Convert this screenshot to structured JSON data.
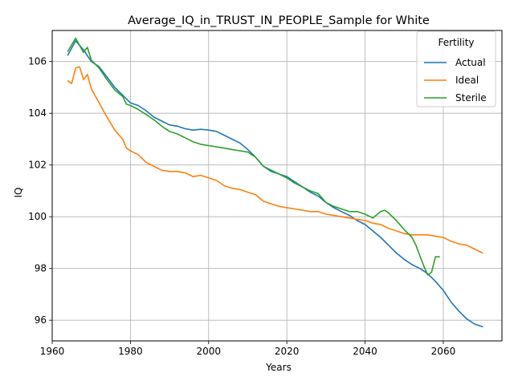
{
  "chart_data": {
    "type": "line",
    "title": "Average_IQ_in_TRUST_IN_PEOPLE_Sample for White",
    "xlabel": "Years",
    "ylabel": "IQ",
    "xlim": [
      1960,
      2075
    ],
    "ylim": [
      95.2,
      107.2
    ],
    "xticks": [
      1960,
      1980,
      2000,
      2020,
      2040,
      2060
    ],
    "yticks": [
      96,
      98,
      100,
      102,
      104,
      106
    ],
    "grid": true,
    "legend": {
      "title": "Fertility",
      "placement": "top-right"
    },
    "series": [
      {
        "name": "Actual",
        "color": "#1f77b4",
        "x": [
          1964,
          1966,
          1968,
          1970,
          1972,
          1974,
          1976,
          1978,
          1980,
          1982,
          1984,
          1986,
          1988,
          1990,
          1992,
          1994,
          1996,
          1998,
          2000,
          2002,
          2004,
          2006,
          2008,
          2010,
          2012,
          2014,
          2016,
          2018,
          2020,
          2022,
          2024,
          2026,
          2028,
          2030,
          2032,
          2034,
          2036,
          2038,
          2040,
          2042,
          2044,
          2046,
          2048,
          2050,
          2052,
          2054,
          2056,
          2058,
          2060,
          2062,
          2064,
          2066,
          2068,
          2070
        ],
        "values": [
          106.25,
          106.8,
          106.45,
          106.0,
          105.8,
          105.4,
          105.0,
          104.7,
          104.4,
          104.3,
          104.1,
          103.85,
          103.7,
          103.55,
          103.5,
          103.4,
          103.35,
          103.38,
          103.35,
          103.3,
          103.15,
          103.0,
          102.85,
          102.6,
          102.3,
          101.95,
          101.75,
          101.65,
          101.55,
          101.35,
          101.15,
          100.95,
          100.8,
          100.55,
          100.35,
          100.2,
          100.05,
          99.85,
          99.7,
          99.45,
          99.2,
          98.9,
          98.6,
          98.35,
          98.15,
          98.0,
          97.8,
          97.5,
          97.15,
          96.7,
          96.35,
          96.05,
          95.85,
          95.75
        ]
      },
      {
        "name": "Ideal",
        "color": "#ff7f0e",
        "x": [
          1964,
          1965,
          1966,
          1967,
          1968,
          1969,
          1970,
          1972,
          1974,
          1976,
          1978,
          1979,
          1980,
          1982,
          1984,
          1986,
          1988,
          1990,
          1992,
          1994,
          1996,
          1998,
          2000,
          2002,
          2004,
          2006,
          2008,
          2010,
          2012,
          2014,
          2016,
          2018,
          2020,
          2022,
          2024,
          2026,
          2028,
          2030,
          2032,
          2034,
          2036,
          2038,
          2040,
          2042,
          2044,
          2046,
          2048,
          2050,
          2052,
          2054,
          2056,
          2058,
          2060,
          2062,
          2064,
          2066,
          2068,
          2070
        ],
        "values": [
          105.25,
          105.15,
          105.75,
          105.8,
          105.3,
          105.5,
          104.95,
          104.4,
          103.85,
          103.35,
          103.0,
          102.65,
          102.55,
          102.4,
          102.1,
          101.95,
          101.8,
          101.75,
          101.75,
          101.7,
          101.55,
          101.6,
          101.5,
          101.4,
          101.2,
          101.1,
          101.05,
          100.95,
          100.85,
          100.6,
          100.5,
          100.4,
          100.35,
          100.3,
          100.25,
          100.2,
          100.2,
          100.1,
          100.05,
          100.0,
          99.95,
          99.9,
          99.85,
          99.75,
          99.7,
          99.55,
          99.45,
          99.35,
          99.3,
          99.3,
          99.3,
          99.25,
          99.2,
          99.05,
          98.95,
          98.9,
          98.75,
          98.6
        ]
      },
      {
        "name": "Sterile",
        "color": "#2ca02c",
        "x": [
          1964,
          1966,
          1968,
          1969,
          1970,
          1972,
          1974,
          1976,
          1978,
          1979,
          1980,
          1982,
          1984,
          1986,
          1988,
          1990,
          1992,
          1994,
          1996,
          1998,
          2000,
          2002,
          2004,
          2006,
          2008,
          2010,
          2012,
          2014,
          2016,
          2018,
          2020,
          2022,
          2024,
          2026,
          2028,
          2030,
          2032,
          2034,
          2036,
          2038,
          2040,
          2042,
          2044,
          2045,
          2046,
          2048,
          2050,
          2052,
          2053,
          2054,
          2055,
          2056,
          2057,
          2058,
          2059
        ],
        "values": [
          106.4,
          106.9,
          106.35,
          106.55,
          106.05,
          105.75,
          105.3,
          104.9,
          104.65,
          104.35,
          104.3,
          104.15,
          103.95,
          103.75,
          103.5,
          103.3,
          103.2,
          103.05,
          102.9,
          102.8,
          102.75,
          102.7,
          102.65,
          102.6,
          102.55,
          102.5,
          102.3,
          101.95,
          101.8,
          101.65,
          101.5,
          101.3,
          101.15,
          101.0,
          100.9,
          100.55,
          100.4,
          100.3,
          100.2,
          100.2,
          100.1,
          99.95,
          100.2,
          100.25,
          100.15,
          99.85,
          99.5,
          99.2,
          98.9,
          98.5,
          98.1,
          97.75,
          97.85,
          98.45,
          98.45
        ]
      }
    ]
  }
}
